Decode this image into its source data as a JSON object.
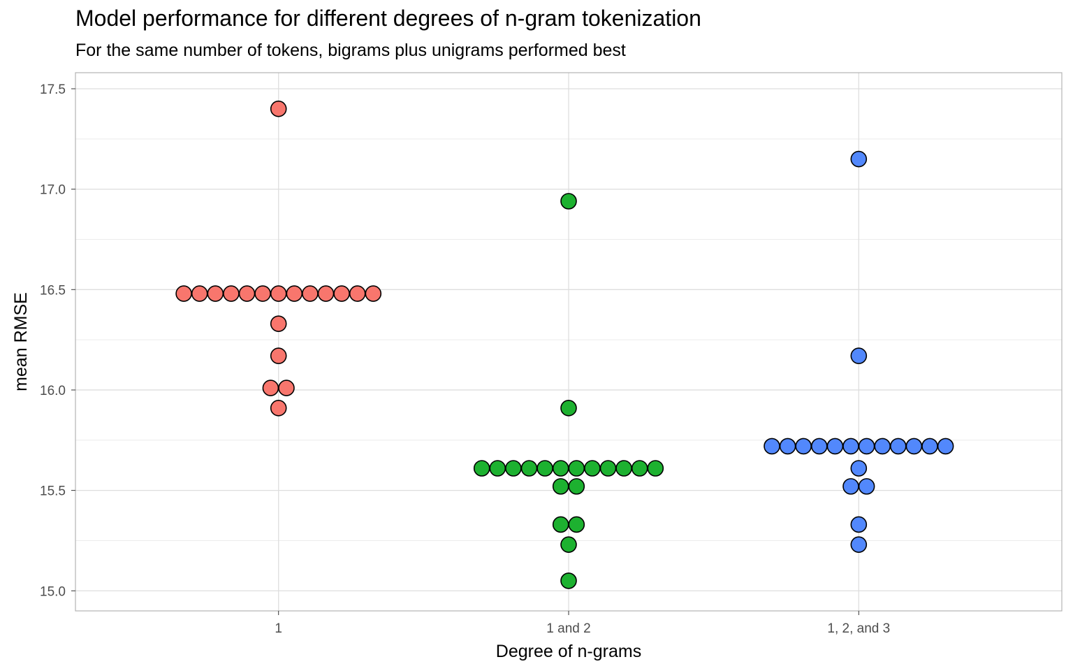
{
  "chart_data": {
    "type": "scatter",
    "title": "Model performance for different degrees of n-gram tokenization",
    "subtitle": "For the same number of tokens, bigrams plus unigrams performed best",
    "xlabel": "Degree of n-grams",
    "ylabel": "mean RMSE",
    "categories": [
      "1",
      "1 and 2",
      "1, 2, and 3"
    ],
    "ylim": [
      14.9,
      17.58
    ],
    "yticks": [
      15.0,
      15.5,
      16.0,
      16.5,
      17.0,
      17.5
    ],
    "ytick_labels": [
      "15.0",
      "15.5",
      "16.0",
      "16.5",
      "17.0",
      "17.5"
    ],
    "grid": true,
    "legend": "none",
    "series": [
      {
        "category": "1",
        "color": "#F8766D",
        "values": [
          17.4,
          16.48,
          16.48,
          16.48,
          16.48,
          16.48,
          16.48,
          16.48,
          16.48,
          16.48,
          16.48,
          16.48,
          16.48,
          16.48,
          16.33,
          16.17,
          16.01,
          16.01,
          15.91
        ]
      },
      {
        "category": "1 and 2",
        "color": "#1DB130",
        "values": [
          16.94,
          15.91,
          15.61,
          15.61,
          15.61,
          15.61,
          15.61,
          15.61,
          15.61,
          15.61,
          15.61,
          15.61,
          15.61,
          15.61,
          15.52,
          15.52,
          15.33,
          15.33,
          15.23,
          15.05
        ]
      },
      {
        "category": "1, 2, and 3",
        "color": "#5288FC",
        "values": [
          17.15,
          16.17,
          15.72,
          15.72,
          15.72,
          15.72,
          15.72,
          15.72,
          15.72,
          15.72,
          15.72,
          15.72,
          15.72,
          15.72,
          15.61,
          15.52,
          15.52,
          15.33,
          15.23
        ]
      }
    ]
  }
}
